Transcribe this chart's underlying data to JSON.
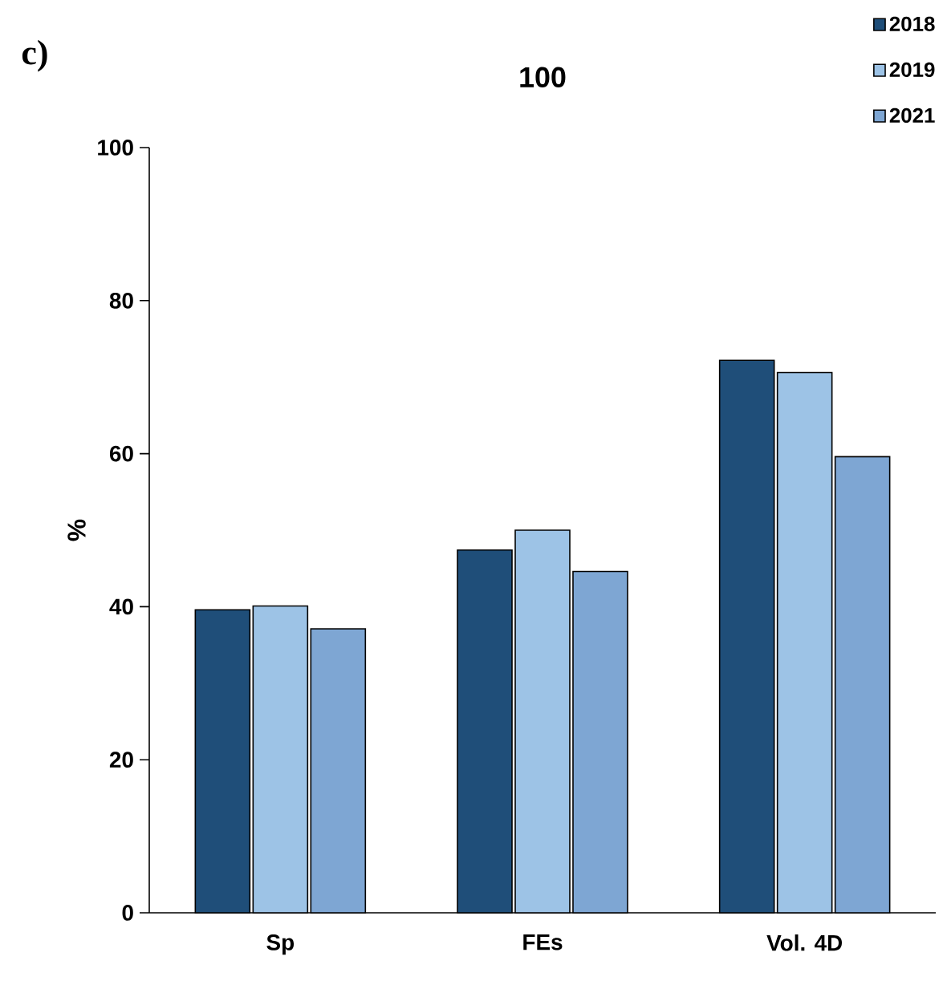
{
  "chart_data": {
    "type": "bar",
    "title": "100",
    "ylabel": "%",
    "categories": [
      "Sp",
      "FEs",
      "Vol. 4D"
    ],
    "series": [
      {
        "name": "2018",
        "color": "#1f4e79",
        "values": [
          39.6,
          47.4,
          72.2
        ]
      },
      {
        "name": "2019",
        "color": "#9dc3e6",
        "values": [
          40.1,
          50.0,
          70.6
        ]
      },
      {
        "name": "2021",
        "color": "#7ea6d3",
        "values": [
          37.1,
          44.6,
          59.6
        ]
      }
    ],
    "ylim": [
      0,
      100
    ],
    "yticks": [
      0,
      20,
      40,
      60,
      80,
      100
    ],
    "legend": "top right",
    "annotations": [
      "c)"
    ]
  }
}
